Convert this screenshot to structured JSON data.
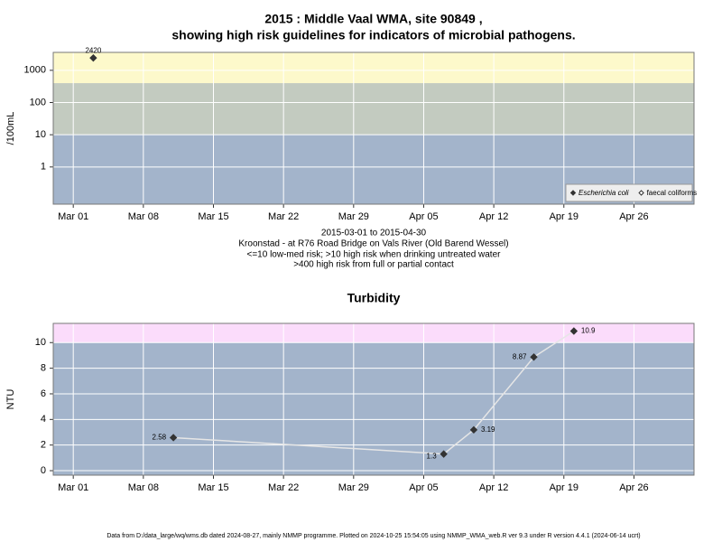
{
  "chart_data": [
    {
      "type": "scatter",
      "title": [
        "2015 : Middle Vaal WMA, site 90849 ,",
        "showing high risk guidelines for indicators of microbial pathogens."
      ],
      "subtitle": [
        "2015-03-01 to 2015-04-30",
        "Kroonstad - at R76 Road Bridge on Vals River (Old Barend Wessel)",
        "<=10 low-med risk; >10 high risk when drinking untreated water",
        ">400 high risk from full or partial contact"
      ],
      "y_label": "/100mL",
      "log_y": true,
      "x": [
        "2015-03-03"
      ],
      "series": [
        {
          "name": "Escherichia coli",
          "color": "#333333",
          "marker": "filled",
          "values": [
            2420
          ]
        },
        {
          "name": "faecal coliforms",
          "color": "#333333",
          "marker": "open",
          "values": [
            null
          ]
        }
      ],
      "xlim": [
        "2015-02-27",
        "2015-05-02"
      ],
      "xticks": [
        {
          "value": "2015-03-01",
          "label": "Mar 01"
        },
        {
          "value": "2015-03-08",
          "label": "Mar 08"
        },
        {
          "value": "2015-03-15",
          "label": "Mar 15"
        },
        {
          "value": "2015-03-22",
          "label": "Mar 22"
        },
        {
          "value": "2015-03-29",
          "label": "Mar 29"
        },
        {
          "value": "2015-04-05",
          "label": "Apr 05"
        },
        {
          "value": "2015-04-12",
          "label": "Apr 12"
        },
        {
          "value": "2015-04-19",
          "label": "Apr 19"
        },
        {
          "value": "2015-04-26",
          "label": "Apr 26"
        }
      ],
      "ylim": [
        0.07,
        3600
      ],
      "yticks": [
        1,
        10,
        100,
        1000
      ],
      "thresholds": [
        10,
        400
      ],
      "band_colors": [
        "#a3b4cb",
        "#c3cbc0",
        "#fdf9cb"
      ],
      "grid": true,
      "legend": "lower right"
    },
    {
      "type": "line",
      "title": "Turbidity",
      "y_label": "NTU",
      "log_y": false,
      "x": [
        "2015-03-11",
        "2015-04-07",
        "2015-04-10",
        "2015-04-16",
        "2015-04-20"
      ],
      "series": [
        {
          "color": "#333333",
          "line_color": "#e6e6e6",
          "values": [
            2.58,
            1.3,
            3.19,
            8.87,
            10.9
          ]
        }
      ],
      "xlim": [
        "2015-02-27",
        "2015-05-02"
      ],
      "xticks": [
        {
          "value": "2015-03-01",
          "label": "Mar 01"
        },
        {
          "value": "2015-03-08",
          "label": "Mar 08"
        },
        {
          "value": "2015-03-15",
          "label": "Mar 15"
        },
        {
          "value": "2015-03-22",
          "label": "Mar 22"
        },
        {
          "value": "2015-03-29",
          "label": "Mar 29"
        },
        {
          "value": "2015-04-05",
          "label": "Apr 05"
        },
        {
          "value": "2015-04-12",
          "label": "Apr 12"
        },
        {
          "value": "2015-04-19",
          "label": "Apr 19"
        },
        {
          "value": "2015-04-26",
          "label": "Apr 26"
        }
      ],
      "ylim": [
        -0.35,
        11.5
      ],
      "yticks": [
        0,
        2,
        4,
        6,
        8,
        10
      ],
      "thresholds": [
        10
      ],
      "band_colors": [
        "#a3b4cb",
        "#fbdcfb"
      ],
      "grid": true
    }
  ],
  "footer": "Data from D:/data_large/wq/wms.db dated 2024-08-27, mainly NMMP programme. Plotted on 2024-10-25 15:54:05 using NMMP_WMA_web.R ver 9.3 under R version 4.4.1 (2024-06-14 ucrt)"
}
